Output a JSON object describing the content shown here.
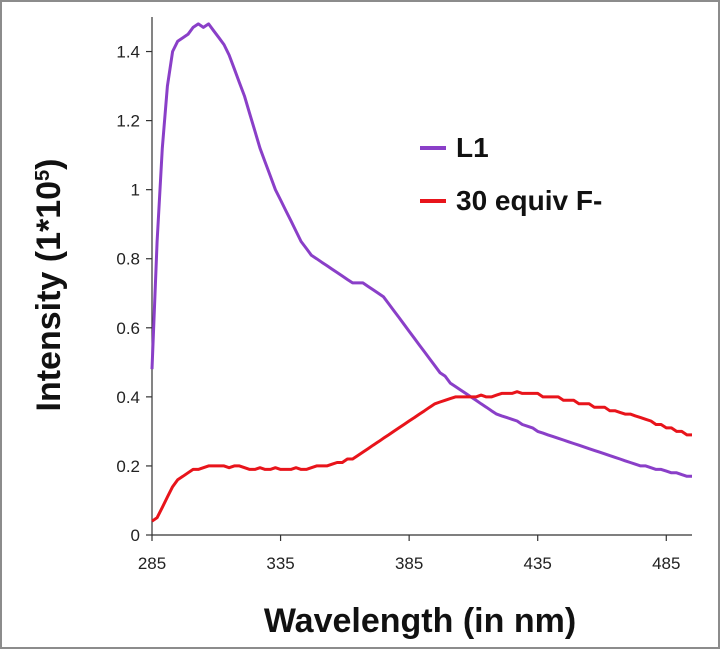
{
  "chart_data": {
    "type": "line",
    "xlabel": "Wavelength (in nm)",
    "ylabel_main": "Intensity (1*10",
    "ylabel_sup": "5",
    "ylabel_close": ")",
    "xlim": [
      285,
      495
    ],
    "ylim": [
      0,
      1.5
    ],
    "x_ticks": [
      285,
      335,
      385,
      435,
      485
    ],
    "y_ticks": [
      0,
      0.2,
      0.4,
      0.6,
      0.8,
      1,
      1.2,
      1.4
    ],
    "legend_position": "right",
    "series": [
      {
        "name": "L1",
        "color": "#8a3fc8",
        "points": [
          [
            285,
            0.48
          ],
          [
            287,
            0.85
          ],
          [
            289,
            1.12
          ],
          [
            291,
            1.3
          ],
          [
            293,
            1.4
          ],
          [
            295,
            1.43
          ],
          [
            297,
            1.44
          ],
          [
            299,
            1.45
          ],
          [
            301,
            1.47
          ],
          [
            303,
            1.48
          ],
          [
            305,
            1.47
          ],
          [
            307,
            1.48
          ],
          [
            309,
            1.46
          ],
          [
            311,
            1.44
          ],
          [
            313,
            1.42
          ],
          [
            315,
            1.39
          ],
          [
            317,
            1.35
          ],
          [
            319,
            1.31
          ],
          [
            321,
            1.27
          ],
          [
            323,
            1.22
          ],
          [
            325,
            1.17
          ],
          [
            327,
            1.12
          ],
          [
            329,
            1.08
          ],
          [
            331,
            1.04
          ],
          [
            333,
            1.0
          ],
          [
            335,
            0.97
          ],
          [
            337,
            0.94
          ],
          [
            339,
            0.91
          ],
          [
            341,
            0.88
          ],
          [
            343,
            0.85
          ],
          [
            345,
            0.83
          ],
          [
            347,
            0.81
          ],
          [
            349,
            0.8
          ],
          [
            351,
            0.79
          ],
          [
            353,
            0.78
          ],
          [
            355,
            0.77
          ],
          [
            357,
            0.76
          ],
          [
            359,
            0.75
          ],
          [
            361,
            0.74
          ],
          [
            363,
            0.73
          ],
          [
            365,
            0.73
          ],
          [
            367,
            0.73
          ],
          [
            369,
            0.72
          ],
          [
            371,
            0.71
          ],
          [
            373,
            0.7
          ],
          [
            375,
            0.69
          ],
          [
            377,
            0.67
          ],
          [
            379,
            0.65
          ],
          [
            381,
            0.63
          ],
          [
            383,
            0.61
          ],
          [
            385,
            0.59
          ],
          [
            387,
            0.57
          ],
          [
            389,
            0.55
          ],
          [
            391,
            0.53
          ],
          [
            393,
            0.51
          ],
          [
            395,
            0.49
          ],
          [
            397,
            0.47
          ],
          [
            399,
            0.46
          ],
          [
            401,
            0.44
          ],
          [
            403,
            0.43
          ],
          [
            405,
            0.42
          ],
          [
            407,
            0.41
          ],
          [
            409,
            0.4
          ],
          [
            411,
            0.39
          ],
          [
            413,
            0.38
          ],
          [
            415,
            0.37
          ],
          [
            417,
            0.36
          ],
          [
            419,
            0.35
          ],
          [
            421,
            0.345
          ],
          [
            423,
            0.34
          ],
          [
            425,
            0.335
          ],
          [
            427,
            0.33
          ],
          [
            429,
            0.32
          ],
          [
            431,
            0.315
          ],
          [
            433,
            0.31
          ],
          [
            435,
            0.3
          ],
          [
            437,
            0.295
          ],
          [
            439,
            0.29
          ],
          [
            441,
            0.285
          ],
          [
            443,
            0.28
          ],
          [
            445,
            0.275
          ],
          [
            447,
            0.27
          ],
          [
            449,
            0.265
          ],
          [
            451,
            0.26
          ],
          [
            453,
            0.255
          ],
          [
            455,
            0.25
          ],
          [
            457,
            0.245
          ],
          [
            459,
            0.24
          ],
          [
            461,
            0.235
          ],
          [
            463,
            0.23
          ],
          [
            465,
            0.225
          ],
          [
            467,
            0.22
          ],
          [
            469,
            0.215
          ],
          [
            471,
            0.21
          ],
          [
            473,
            0.205
          ],
          [
            475,
            0.2
          ],
          [
            477,
            0.2
          ],
          [
            479,
            0.195
          ],
          [
            481,
            0.19
          ],
          [
            483,
            0.19
          ],
          [
            485,
            0.185
          ],
          [
            487,
            0.18
          ],
          [
            489,
            0.18
          ],
          [
            491,
            0.175
          ],
          [
            493,
            0.17
          ],
          [
            495,
            0.17
          ]
        ]
      },
      {
        "name": "30 equiv F-",
        "color": "#e8141b",
        "points": [
          [
            285,
            0.04
          ],
          [
            287,
            0.05
          ],
          [
            289,
            0.08
          ],
          [
            291,
            0.11
          ],
          [
            293,
            0.14
          ],
          [
            295,
            0.16
          ],
          [
            297,
            0.17
          ],
          [
            299,
            0.18
          ],
          [
            301,
            0.19
          ],
          [
            303,
            0.19
          ],
          [
            305,
            0.195
          ],
          [
            307,
            0.2
          ],
          [
            309,
            0.2
          ],
          [
            311,
            0.2
          ],
          [
            313,
            0.2
          ],
          [
            315,
            0.195
          ],
          [
            317,
            0.2
          ],
          [
            319,
            0.2
          ],
          [
            321,
            0.195
          ],
          [
            323,
            0.19
          ],
          [
            325,
            0.19
          ],
          [
            327,
            0.195
          ],
          [
            329,
            0.19
          ],
          [
            331,
            0.19
          ],
          [
            333,
            0.195
          ],
          [
            335,
            0.19
          ],
          [
            337,
            0.19
          ],
          [
            339,
            0.19
          ],
          [
            341,
            0.195
          ],
          [
            343,
            0.19
          ],
          [
            345,
            0.19
          ],
          [
            347,
            0.195
          ],
          [
            349,
            0.2
          ],
          [
            351,
            0.2
          ],
          [
            353,
            0.2
          ],
          [
            355,
            0.205
          ],
          [
            357,
            0.21
          ],
          [
            359,
            0.21
          ],
          [
            361,
            0.22
          ],
          [
            363,
            0.22
          ],
          [
            365,
            0.23
          ],
          [
            367,
            0.24
          ],
          [
            369,
            0.25
          ],
          [
            371,
            0.26
          ],
          [
            373,
            0.27
          ],
          [
            375,
            0.28
          ],
          [
            377,
            0.29
          ],
          [
            379,
            0.3
          ],
          [
            381,
            0.31
          ],
          [
            383,
            0.32
          ],
          [
            385,
            0.33
          ],
          [
            387,
            0.34
          ],
          [
            389,
            0.35
          ],
          [
            391,
            0.36
          ],
          [
            393,
            0.37
          ],
          [
            395,
            0.38
          ],
          [
            397,
            0.385
          ],
          [
            399,
            0.39
          ],
          [
            401,
            0.395
          ],
          [
            403,
            0.4
          ],
          [
            405,
            0.4
          ],
          [
            407,
            0.4
          ],
          [
            409,
            0.4
          ],
          [
            411,
            0.4
          ],
          [
            413,
            0.405
          ],
          [
            415,
            0.4
          ],
          [
            417,
            0.4
          ],
          [
            419,
            0.405
          ],
          [
            421,
            0.41
          ],
          [
            423,
            0.41
          ],
          [
            425,
            0.41
          ],
          [
            427,
            0.415
          ],
          [
            429,
            0.41
          ],
          [
            431,
            0.41
          ],
          [
            433,
            0.41
          ],
          [
            435,
            0.41
          ],
          [
            437,
            0.4
          ],
          [
            439,
            0.4
          ],
          [
            441,
            0.4
          ],
          [
            443,
            0.4
          ],
          [
            445,
            0.39
          ],
          [
            447,
            0.39
          ],
          [
            449,
            0.39
          ],
          [
            451,
            0.38
          ],
          [
            453,
            0.38
          ],
          [
            455,
            0.38
          ],
          [
            457,
            0.37
          ],
          [
            459,
            0.37
          ],
          [
            461,
            0.37
          ],
          [
            463,
            0.36
          ],
          [
            465,
            0.36
          ],
          [
            467,
            0.355
          ],
          [
            469,
            0.35
          ],
          [
            471,
            0.35
          ],
          [
            473,
            0.345
          ],
          [
            475,
            0.34
          ],
          [
            477,
            0.335
          ],
          [
            479,
            0.33
          ],
          [
            481,
            0.32
          ],
          [
            483,
            0.32
          ],
          [
            485,
            0.31
          ],
          [
            487,
            0.31
          ],
          [
            489,
            0.3
          ],
          [
            491,
            0.3
          ],
          [
            493,
            0.29
          ],
          [
            495,
            0.29
          ]
        ]
      }
    ]
  }
}
